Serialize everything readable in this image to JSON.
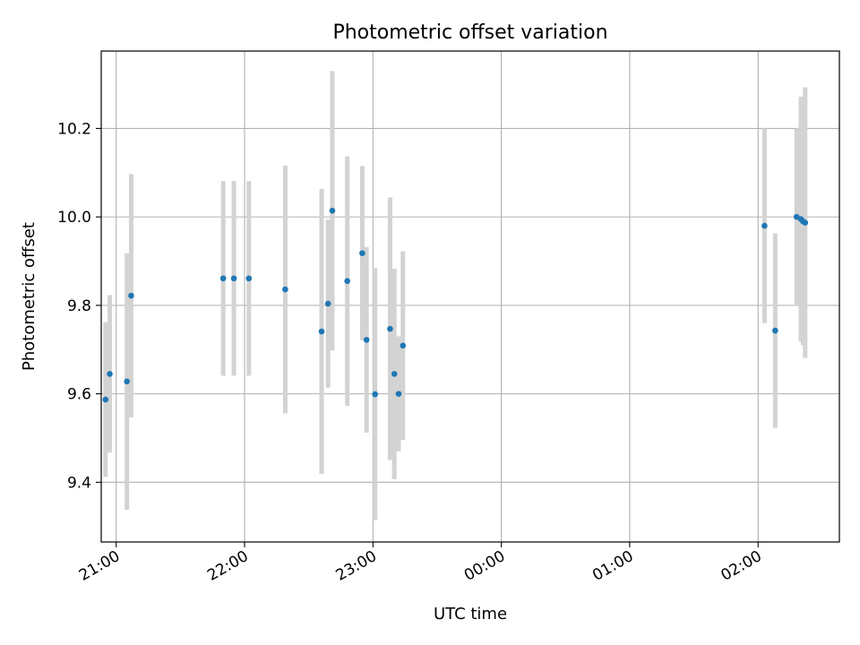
{
  "chart_data": {
    "type": "scatter",
    "title": "Photometric offset variation",
    "xlabel": "UTC time",
    "ylabel": "Photometric offset",
    "xlim": [
      "20:53",
      "02:38"
    ],
    "ylim": [
      9.265,
      10.375
    ],
    "grid": true,
    "x_ticks": [
      "21:00",
      "22:00",
      "23:00",
      "00:00",
      "01:00",
      "02:00"
    ],
    "y_ticks": [
      "9.4",
      "9.6",
      "9.8",
      "10.0",
      "10.2"
    ],
    "colors": {
      "point": "#1f77b4",
      "errorbar": "#d3d3d3",
      "grid": "#b0b0b0"
    },
    "points": [
      {
        "x": "20:55",
        "y": 9.587,
        "err": 0.175
      },
      {
        "x": "20:57",
        "y": 9.645,
        "err": 0.178
      },
      {
        "x": "21:05",
        "y": 9.628,
        "err": 0.29
      },
      {
        "x": "21:07",
        "y": 9.822,
        "err": 0.275
      },
      {
        "x": "21:50",
        "y": 9.861,
        "err": 0.22
      },
      {
        "x": "21:55",
        "y": 9.861,
        "err": 0.22
      },
      {
        "x": "22:02",
        "y": 9.861,
        "err": 0.22
      },
      {
        "x": "22:19",
        "y": 9.836,
        "err": 0.28
      },
      {
        "x": "22:36",
        "y": 9.741,
        "err": 0.322
      },
      {
        "x": "22:39",
        "y": 9.804,
        "err": 0.19
      },
      {
        "x": "22:41",
        "y": 10.014,
        "err": 0.316
      },
      {
        "x": "22:48",
        "y": 9.855,
        "err": 0.282
      },
      {
        "x": "22:55",
        "y": 9.918,
        "err": 0.197
      },
      {
        "x": "22:57",
        "y": 9.722,
        "err": 0.21
      },
      {
        "x": "23:01",
        "y": 9.599,
        "err": 0.285
      },
      {
        "x": "23:08",
        "y": 9.747,
        "err": 0.297
      },
      {
        "x": "23:10",
        "y": 9.645,
        "err": 0.238
      },
      {
        "x": "23:12",
        "y": 9.6,
        "err": 0.13
      },
      {
        "x": "23:14",
        "y": 9.709,
        "err": 0.213
      },
      {
        "x": "02:03",
        "y": 9.98,
        "err": 0.22
      },
      {
        "x": "02:08",
        "y": 9.743,
        "err": 0.22
      },
      {
        "x": "02:18",
        "y": 10.0,
        "err": 0.2
      },
      {
        "x": "02:20",
        "y": 9.995,
        "err": 0.277
      },
      {
        "x": "02:21",
        "y": 9.99,
        "err": 0.28
      },
      {
        "x": "02:22",
        "y": 9.987,
        "err": 0.306
      }
    ]
  }
}
